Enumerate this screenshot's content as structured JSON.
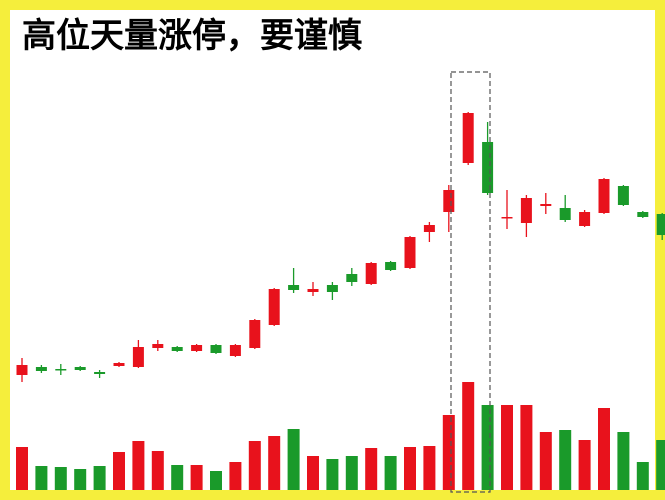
{
  "chart_data": {
    "type": "candlestick",
    "title": "高位天量涨停，要谨慎",
    "up_color": "#e8121c",
    "down_color": "#1a9a2a",
    "ylim": [
      0,
      300
    ],
    "volume_ylim": [
      0,
      110
    ],
    "open": [
      25,
      33,
      31,
      33,
      28,
      34,
      33,
      52,
      53,
      49,
      55,
      44,
      52,
      75,
      115,
      108,
      115,
      126,
      116,
      138,
      132,
      168,
      188,
      237,
      258,
      182,
      177,
      194,
      192,
      174,
      187,
      214,
      188,
      186
    ],
    "close": [
      35,
      29,
      30,
      30,
      26,
      37,
      53,
      56,
      49,
      55,
      47,
      55,
      80,
      111,
      110,
      111,
      108,
      118,
      137,
      130,
      163,
      175,
      210,
      287,
      207,
      183,
      202,
      196,
      180,
      188,
      221,
      195,
      183,
      165
    ],
    "high": [
      42,
      35,
      36,
      34,
      30,
      38,
      60,
      60,
      54,
      56,
      56,
      56,
      81,
      112,
      132,
      118,
      118,
      132,
      138,
      139,
      164,
      178,
      215,
      288,
      278,
      210,
      205,
      207,
      205,
      190,
      222,
      215,
      189,
      187
    ],
    "low": [
      18,
      27,
      25,
      29,
      22,
      33,
      32,
      49,
      48,
      48,
      46,
      43,
      51,
      74,
      107,
      104,
      100,
      114,
      115,
      129,
      131,
      158,
      168,
      235,
      205,
      171,
      163,
      186,
      178,
      173,
      186,
      194,
      182,
      160
    ],
    "volume": [
      43,
      24,
      23,
      21,
      24,
      38,
      49,
      39,
      25,
      25,
      19,
      28,
      49,
      54,
      61,
      34,
      31,
      34,
      42,
      34,
      43,
      44,
      75,
      108,
      85,
      85,
      85,
      58,
      60,
      50,
      82,
      58,
      28,
      50
    ]
  }
}
